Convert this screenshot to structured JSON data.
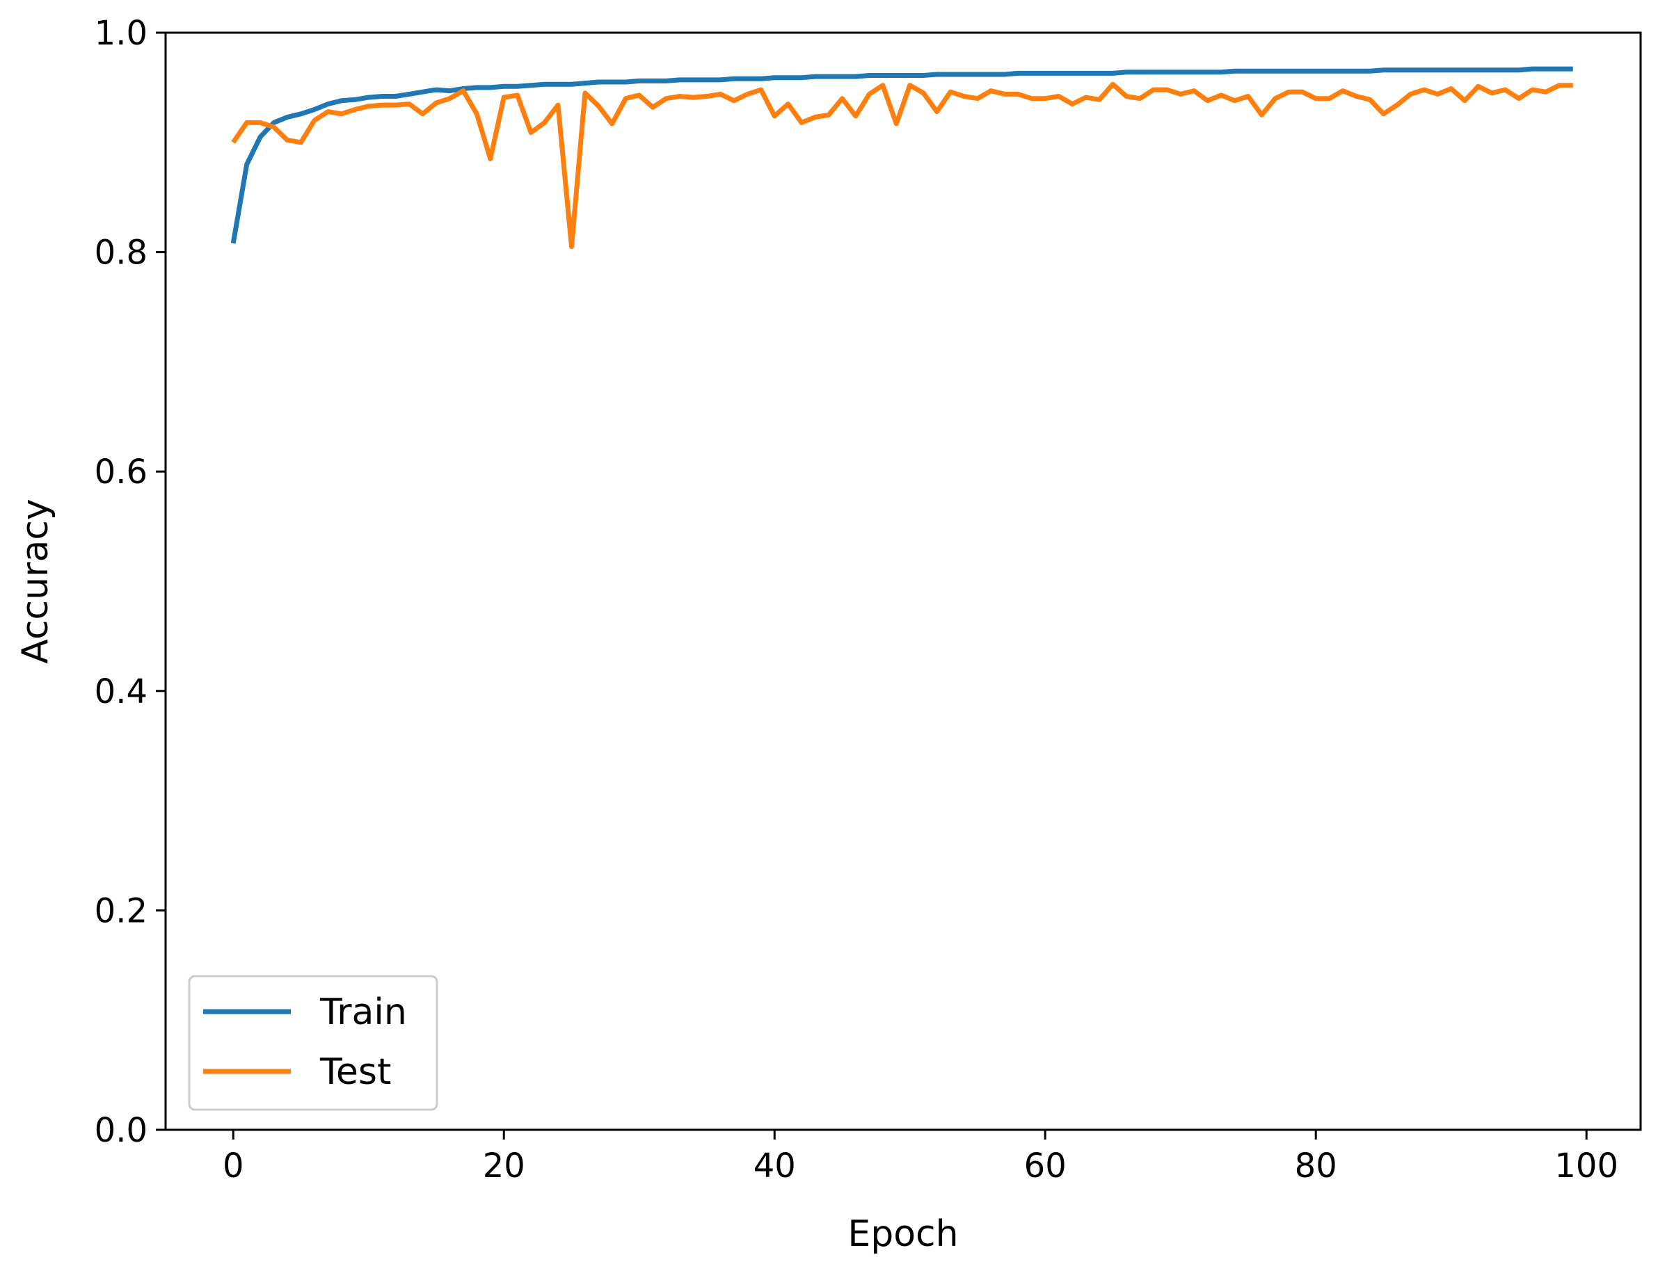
{
  "chart_data": {
    "type": "line",
    "title": "",
    "xlabel": "Epoch",
    "ylabel": "Accuracy",
    "xlim": [
      -5,
      104
    ],
    "ylim": [
      0,
      1.0
    ],
    "xticks": [
      0,
      20,
      40,
      60,
      80,
      100
    ],
    "yticks": [
      0.0,
      0.2,
      0.4,
      0.6,
      0.8,
      1.0
    ],
    "xtick_labels": [
      "0",
      "20",
      "40",
      "60",
      "80",
      "100"
    ],
    "ytick_labels": [
      "0.0",
      "0.2",
      "0.4",
      "0.6",
      "0.8",
      "1.0"
    ],
    "grid": false,
    "legend_position": "lower-left",
    "x": [
      0,
      1,
      2,
      3,
      4,
      5,
      6,
      7,
      8,
      9,
      10,
      11,
      12,
      13,
      14,
      15,
      16,
      17,
      18,
      19,
      20,
      21,
      22,
      23,
      24,
      25,
      26,
      27,
      28,
      29,
      30,
      31,
      32,
      33,
      34,
      35,
      36,
      37,
      38,
      39,
      40,
      41,
      42,
      43,
      44,
      45,
      46,
      47,
      48,
      49,
      50,
      51,
      52,
      53,
      54,
      55,
      56,
      57,
      58,
      59,
      60,
      61,
      62,
      63,
      64,
      65,
      66,
      67,
      68,
      69,
      70,
      71,
      72,
      73,
      74,
      75,
      76,
      77,
      78,
      79,
      80,
      81,
      82,
      83,
      84,
      85,
      86,
      87,
      88,
      89,
      90,
      91,
      92,
      93,
      94,
      95,
      96,
      97,
      98,
      99
    ],
    "series": [
      {
        "name": "Train",
        "color": "#1f77b4",
        "values": [
          0.808,
          0.88,
          0.905,
          0.918,
          0.923,
          0.926,
          0.93,
          0.935,
          0.938,
          0.939,
          0.941,
          0.942,
          0.942,
          0.944,
          0.946,
          0.948,
          0.947,
          0.949,
          0.95,
          0.95,
          0.951,
          0.951,
          0.952,
          0.953,
          0.953,
          0.953,
          0.954,
          0.955,
          0.955,
          0.955,
          0.956,
          0.956,
          0.956,
          0.957,
          0.957,
          0.957,
          0.957,
          0.958,
          0.958,
          0.958,
          0.959,
          0.959,
          0.959,
          0.96,
          0.96,
          0.96,
          0.96,
          0.961,
          0.961,
          0.961,
          0.961,
          0.961,
          0.962,
          0.962,
          0.962,
          0.962,
          0.962,
          0.962,
          0.963,
          0.963,
          0.963,
          0.963,
          0.963,
          0.963,
          0.963,
          0.963,
          0.964,
          0.964,
          0.964,
          0.964,
          0.964,
          0.964,
          0.964,
          0.964,
          0.965,
          0.965,
          0.965,
          0.965,
          0.965,
          0.965,
          0.965,
          0.965,
          0.965,
          0.965,
          0.965,
          0.966,
          0.966,
          0.966,
          0.966,
          0.966,
          0.966,
          0.966,
          0.966,
          0.966,
          0.966,
          0.966,
          0.967,
          0.967,
          0.967,
          0.967
        ]
      },
      {
        "name": "Test",
        "color": "#ff7f0e",
        "values": [
          0.9,
          0.918,
          0.918,
          0.914,
          0.902,
          0.9,
          0.92,
          0.928,
          0.926,
          0.93,
          0.933,
          0.934,
          0.934,
          0.935,
          0.926,
          0.936,
          0.94,
          0.947,
          0.926,
          0.885,
          0.941,
          0.943,
          0.909,
          0.918,
          0.934,
          0.805,
          0.945,
          0.933,
          0.917,
          0.94,
          0.943,
          0.932,
          0.94,
          0.942,
          0.941,
          0.942,
          0.944,
          0.938,
          0.944,
          0.948,
          0.924,
          0.935,
          0.918,
          0.923,
          0.925,
          0.94,
          0.924,
          0.944,
          0.952,
          0.917,
          0.952,
          0.945,
          0.928,
          0.946,
          0.942,
          0.94,
          0.947,
          0.944,
          0.944,
          0.94,
          0.94,
          0.942,
          0.935,
          0.941,
          0.939,
          0.953,
          0.942,
          0.94,
          0.948,
          0.948,
          0.944,
          0.947,
          0.938,
          0.943,
          0.938,
          0.942,
          0.925,
          0.94,
          0.946,
          0.946,
          0.94,
          0.94,
          0.947,
          0.942,
          0.939,
          0.926,
          0.934,
          0.944,
          0.948,
          0.944,
          0.949,
          0.938,
          0.951,
          0.945,
          0.948,
          0.94,
          0.948,
          0.946,
          0.952,
          0.952
        ]
      }
    ]
  }
}
